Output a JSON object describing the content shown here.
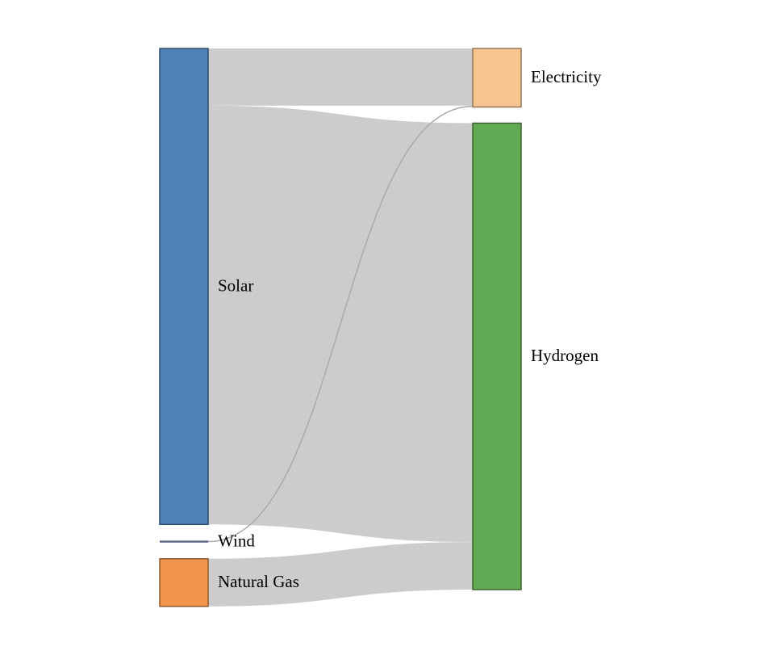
{
  "colors": {
    "link": "#cccccc",
    "link_thin": "#aaaaaa",
    "Solar": "#4f81b8",
    "Wind": "#5c6b85",
    "Natural Gas": "#f0954b",
    "Electricity": "#f6c590",
    "Hydrogen": "#62a953"
  },
  "chart_data": {
    "type": "sankey",
    "nodes": [
      {
        "id": "solar",
        "label": "Solar"
      },
      {
        "id": "wind",
        "label": "Wind"
      },
      {
        "id": "natural-gas",
        "label": "Natural Gas"
      },
      {
        "id": "electricity",
        "label": "Electricity"
      },
      {
        "id": "hydrogen",
        "label": "Hydrogen"
      }
    ],
    "links": [
      {
        "source": "solar",
        "target": "electricity",
        "value": 12
      },
      {
        "source": "solar",
        "target": "hydrogen",
        "value": 88
      },
      {
        "source": "wind",
        "target": "electricity",
        "value": 0.3
      },
      {
        "source": "natural-gas",
        "target": "hydrogen",
        "value": 10
      }
    ]
  }
}
